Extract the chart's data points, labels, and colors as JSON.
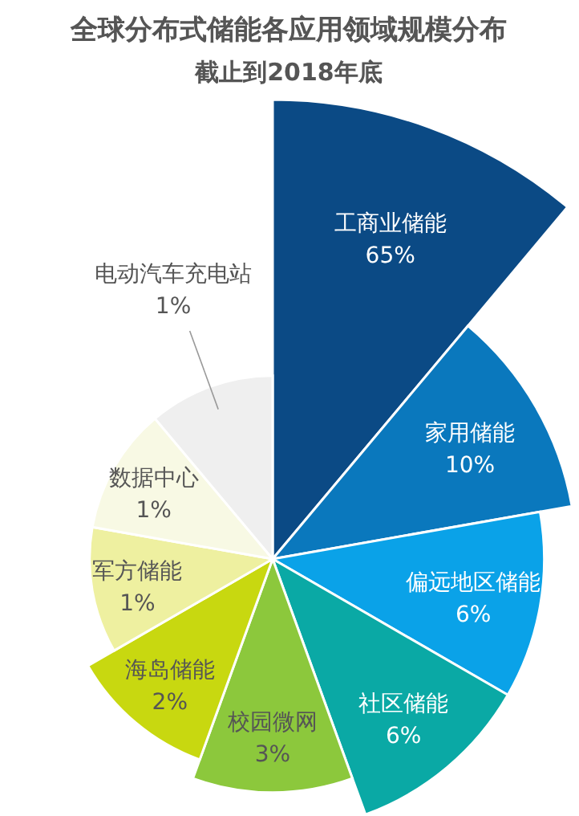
{
  "chart_data": {
    "type": "other",
    "title": "全球分布式储能各应用领域规模分布",
    "subtitle": "截止到2018年底",
    "categories": [
      "工商业储能",
      "家用储能",
      "偏远地区储能",
      "社区储能",
      "校园微网",
      "海岛储能",
      "军方储能",
      "数据中心",
      "电动汽车充电站"
    ],
    "values": [
      65,
      10,
      6,
      6,
      3,
      2,
      1,
      1,
      1
    ],
    "value_labels": [
      "65%",
      "10%",
      "6%",
      "6%",
      "3%",
      "2%",
      "1%",
      "1%",
      "1%"
    ],
    "colors": [
      "#0b4a85",
      "#0a78bd",
      "#0aa2e8",
      "#0aa9a5",
      "#8cc83c",
      "#c8d810",
      "#eef0a0",
      "#f8f9e4",
      "#efefef"
    ]
  }
}
